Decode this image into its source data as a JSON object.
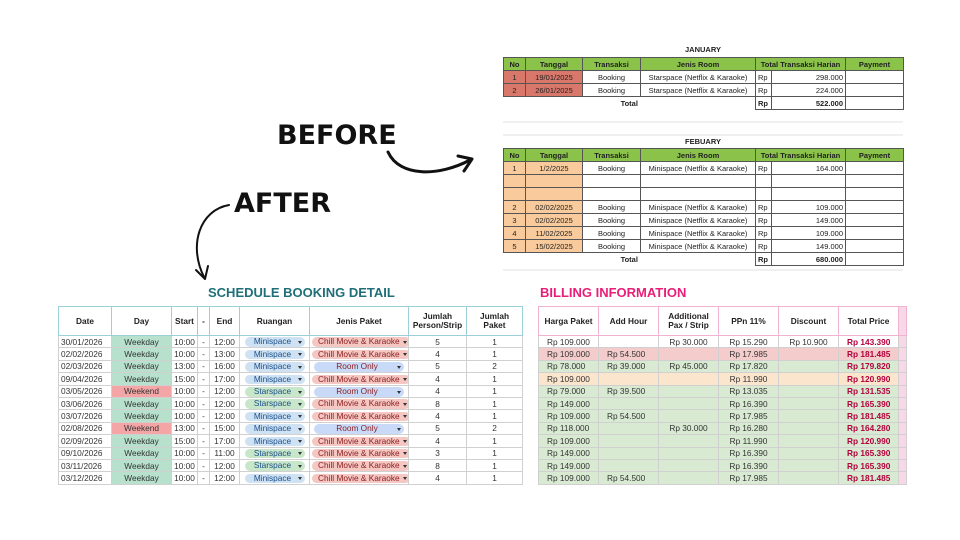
{
  "before_label": "BEFORE",
  "after_label": "AFTER",
  "january": {
    "title": "JANUARY",
    "headers": [
      "No",
      "Tanggal",
      "Transaksi",
      "Jenis Room",
      "Total Transaksi Harian",
      "Payment"
    ],
    "rows": [
      [
        "1",
        "19/01/2025",
        "Booking",
        "Starspace (Netflix & Karaoke)",
        "Rp",
        "298.000",
        null
      ],
      [
        "2",
        "26/01/2025",
        "Booking",
        "Starspace (Netflix & Karaoke)",
        "Rp",
        "224.000",
        null
      ]
    ],
    "total": [
      "Total",
      "Rp",
      "522.000"
    ]
  },
  "february": {
    "title": "FEBUARY",
    "headers": [
      "No",
      "Tanggal",
      "Transaksi",
      "Jenis Room",
      "Total Transaksi Harian",
      "Payment"
    ],
    "rows": [
      [
        "1",
        "1/2/2025",
        "Booking",
        "Minispace (Netflix & Karaoke)",
        "Rp",
        "164.000",
        null
      ],
      [
        null,
        null,
        null,
        null,
        null,
        null,
        null
      ],
      [
        null,
        null,
        null,
        null,
        null,
        null,
        null
      ],
      [
        "2",
        "02/02/2025",
        "Booking",
        "Minispace (Netflix & Karaoke)",
        "Rp",
        "109.000",
        null
      ],
      [
        "3",
        "02/02/2025",
        "Booking",
        "Minispace (Netflix & Karaoke)",
        "Rp",
        "149.000",
        null
      ],
      [
        "4",
        "11/02/2025",
        "Booking",
        "Minispace (Netflix & Karaoke)",
        "Rp",
        "109.000",
        null
      ],
      [
        "5",
        "15/02/2025",
        "Booking",
        "Minispace (Netflix & Karaoke)",
        "Rp",
        "149.000",
        null
      ]
    ],
    "total": [
      "Total",
      "Rp",
      "680.000"
    ]
  },
  "schedule": {
    "title": "SCHEDULE BOOKING DETAIL",
    "headers": [
      "Date",
      "Day",
      "Start",
      "-",
      "End",
      "Ruangan",
      "Jenis Paket",
      "Jumlah Person/Strip",
      "Jumlah Paket"
    ],
    "day_colors": {
      "Weekday": "#b7e1cd",
      "Weekend": "#f4a6a6"
    },
    "room_colors": {
      "Minispace": "#cfe2f3",
      "Starspace": "#c8e6c9"
    },
    "package_colors": {
      "Chill Movie & Karaoke": "#f4c7c3",
      "Room Only": "#c9daf8"
    },
    "rows": [
      [
        "30/01/2026",
        "Weekday",
        "10:00",
        "-",
        "12:00",
        "Minispace",
        "Chill Movie & Karaoke",
        "5",
        "1"
      ],
      [
        "02/02/2026",
        "Weekday",
        "10:00",
        "-",
        "13:00",
        "Minispace",
        "Chill Movie & Karaoke",
        "4",
        "1"
      ],
      [
        "02/03/2026",
        "Weekday",
        "13:00",
        "-",
        "16:00",
        "Minispace",
        "Room Only",
        "5",
        "2"
      ],
      [
        "09/04/2026",
        "Weekday",
        "15:00",
        "-",
        "17:00",
        "Minispace",
        "Chill Movie & Karaoke",
        "4",
        "1"
      ],
      [
        "03/05/2026",
        "Weekend",
        "10:00",
        "-",
        "12:00",
        "Starspace",
        "Room Only",
        "4",
        "1"
      ],
      [
        "03/06/2026",
        "Weekday",
        "10:00",
        "-",
        "12:00",
        "Starspace",
        "Chill Movie & Karaoke",
        "8",
        "1"
      ],
      [
        "03/07/2026",
        "Weekday",
        "10:00",
        "-",
        "12:00",
        "Minispace",
        "Chill Movie & Karaoke",
        "4",
        "1"
      ],
      [
        "02/08/2026",
        "Weekend",
        "13:00",
        "-",
        "15:00",
        "Minispace",
        "Room Only",
        "5",
        "2"
      ],
      [
        "02/09/2026",
        "Weekday",
        "15:00",
        "-",
        "17:00",
        "Minispace",
        "Chill Movie & Karaoke",
        "4",
        "1"
      ],
      [
        "09/10/2026",
        "Weekday",
        "10:00",
        "-",
        "11:00",
        "Starspace",
        "Chill Movie & Karaoke",
        "3",
        "1"
      ],
      [
        "03/11/2026",
        "Weekday",
        "10:00",
        "-",
        "12:00",
        "Starspace",
        "Chill Movie & Karaoke",
        "8",
        "1"
      ],
      [
        "03/12/2026",
        "Weekday",
        "10:00",
        "-",
        "12:00",
        "Minispace",
        "Chill Movie & Karaoke",
        "4",
        "1"
      ]
    ]
  },
  "billing": {
    "title": "BILLING INFORMATION",
    "headers": [
      "Harga Paket",
      "Add Hour",
      "Additional Pax / Strip",
      "PPn 11%",
      "Discount",
      "Total Price"
    ],
    "row_colors": [
      "#ffffff",
      "#f4cccc",
      "#d9ead3",
      "#fce5cd",
      "#d9ead3",
      "#d9ead3",
      "#d9ead3",
      "#d9ead3",
      "#d9ead3",
      "#d9ead3",
      "#d9ead3",
      "#d9ead3"
    ],
    "rows": [
      [
        "Rp 109.000",
        null,
        "Rp 30.000",
        "Rp 15.290",
        "Rp 10.900",
        "Rp 143.390"
      ],
      [
        "Rp 109.000",
        "Rp 54.500",
        null,
        "Rp 17.985",
        null,
        "Rp 181.485"
      ],
      [
        "Rp 78.000",
        "Rp 39.000",
        "Rp 45.000",
        "Rp 17.820",
        null,
        "Rp 179.820"
      ],
      [
        "Rp 109.000",
        null,
        null,
        "Rp 11.990",
        null,
        "Rp 120.990"
      ],
      [
        "Rp 79.000",
        "Rp 39.500",
        null,
        "Rp 13.035",
        null,
        "Rp 131.535"
      ],
      [
        "Rp 149.000",
        null,
        null,
        "Rp 16.390",
        null,
        "Rp 165.390"
      ],
      [
        "Rp 109.000",
        "Rp 54.500",
        null,
        "Rp 17.985",
        null,
        "Rp 181.485"
      ],
      [
        "Rp 118.000",
        null,
        "Rp 30.000",
        "Rp 16.280",
        null,
        "Rp 164.280"
      ],
      [
        "Rp 109.000",
        null,
        null,
        "Rp 11.990",
        null,
        "Rp 120.990"
      ],
      [
        "Rp 149.000",
        null,
        null,
        "Rp 16.390",
        null,
        "Rp 165.390"
      ],
      [
        "Rp 149.000",
        null,
        null,
        "Rp 16.390",
        null,
        "Rp 165.390"
      ],
      [
        "Rp 109.000",
        "Rp 54.500",
        null,
        "Rp 17.985",
        null,
        "Rp 181.485"
      ]
    ]
  }
}
